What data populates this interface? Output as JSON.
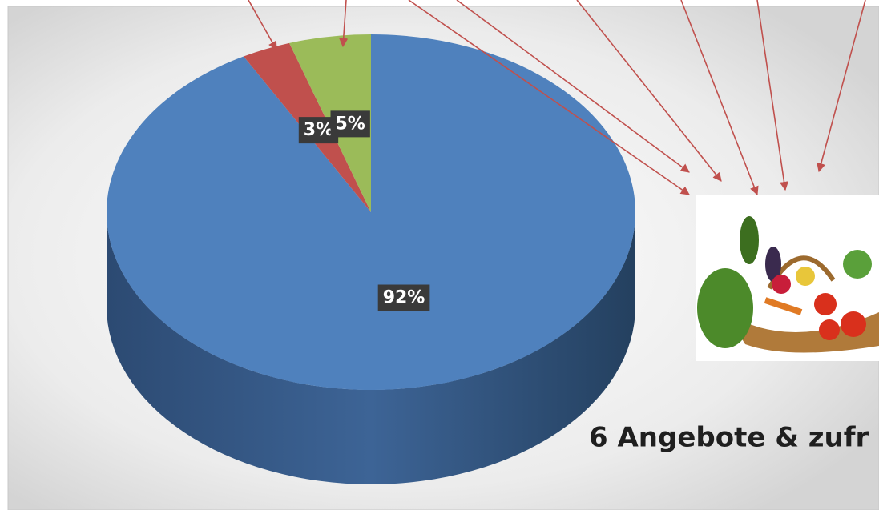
{
  "chart_data": {
    "type": "pie",
    "values": [
      92,
      3,
      5
    ],
    "value_labels": [
      "92%",
      "3%",
      "5%"
    ],
    "colors": [
      "#4f81bd",
      "#c0504d",
      "#9bbb59"
    ],
    "annotation": "6 Angebote & zufr"
  }
}
